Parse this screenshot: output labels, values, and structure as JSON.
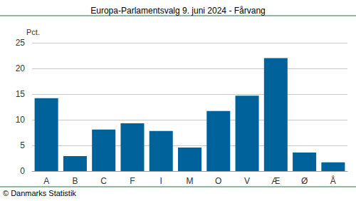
{
  "chart_data": {
    "type": "bar",
    "title": "Europa-Parlamentsvalg 9. juni 2024 - Fårvang",
    "y_label": "Pct.",
    "annotation": "© Danmarks Statistik",
    "categories": [
      "A",
      "B",
      "C",
      "F",
      "I",
      "M",
      "O",
      "V",
      "Æ",
      "Ø",
      "Å"
    ],
    "values": [
      14.2,
      2.9,
      8.1,
      9.3,
      7.8,
      4.6,
      11.7,
      14.7,
      22.0,
      3.6,
      1.7
    ],
    "color": "#00629b",
    "ylim": [
      0,
      25
    ],
    "yticks": [
      0,
      5,
      10,
      15,
      20,
      25
    ],
    "grid": true
  }
}
